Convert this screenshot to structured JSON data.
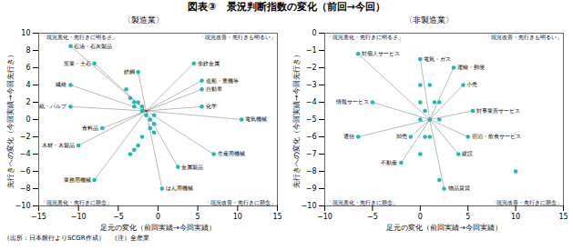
{
  "title": "図表③　景況判断指数の変化（前回→今回）",
  "footnote": "（出所：日本銀行よりSCGR作成）　（注）全産業",
  "chart_data": [
    {
      "type": "scatter",
      "subtitle": "〈製造業〉",
      "xlabel": "足元の変化（前回実績→今回実績）",
      "ylabel": "先行きへの変化（今回実績→今回先行き）",
      "xlim": [
        -15,
        15
      ],
      "ylim": [
        -10,
        10
      ],
      "xticks": [
        -15,
        -10,
        -5,
        0,
        5,
        10,
        15
      ],
      "yticks": [
        -10,
        -8,
        -6,
        -4,
        -2,
        0,
        2,
        4,
        6,
        8,
        10
      ],
      "color": "#1ABCB0",
      "x": [
        -11,
        -8,
        -11,
        -11,
        -7,
        -10,
        -8,
        -2.5,
        4.5,
        5.5,
        5.5,
        5.5,
        10.5,
        7.0,
        2.5,
        0.5,
        -4.0,
        -3.5,
        -3.0,
        -3.0,
        -2.5,
        -2.0,
        -2.0,
        -1.5,
        -1.0,
        -0.5,
        -0.5,
        -1.0,
        -2.0,
        -2.5,
        -3.0,
        -3.5,
        -0.5
      ],
      "y": [
        8.5,
        6.5,
        4.0,
        1.5,
        -1.0,
        -3.0,
        -7.0,
        5.5,
        6.5,
        4.5,
        3.5,
        1.5,
        0.0,
        -4.0,
        -5.5,
        -8.0,
        3.5,
        2.5,
        2.0,
        1.5,
        2.0,
        1.5,
        1.0,
        0.5,
        0.0,
        0.5,
        -0.5,
        -1.0,
        -2.0,
        -3.0,
        -3.5,
        -4.0,
        -1.5
      ],
      "labels": [
        "石油・石灰製品",
        "窯業・土石",
        "繊維",
        "紙・パルプ",
        "食料品",
        "木材・木製品",
        "業務用機械",
        "鉄鋼",
        "非鉄金属",
        "造船・重機等",
        "自動車",
        "化学",
        "電気機械",
        "生産用機械",
        "金属製品",
        "はん用機械",
        null,
        null,
        null,
        null,
        null,
        null,
        null,
        null,
        null,
        null,
        null,
        null,
        null,
        null,
        null,
        null,
        null
      ],
      "lines_from": {
        "x": -1.5,
        "y": 1.0
      },
      "annotations": [
        "「現況悪化・先行きに明るさ」",
        "「現況改善・先行きも明るい」",
        "「現況悪化・先行きに懸念」",
        "「現況改善・先行きに懸念」"
      ]
    },
    {
      "type": "scatter",
      "subtitle": "〈非製造業〉",
      "xlabel": "足元の変化（前回実績→今回実績）",
      "ylabel": "先行きへの変化（今回実績→今回先行き）",
      "xlim": [
        -10,
        15
      ],
      "ylim": [
        -10,
        0
      ],
      "xticks": [
        -10,
        -5,
        0,
        5,
        10,
        15
      ],
      "yticks": [
        -10,
        -9,
        -8,
        -7,
        -6,
        -5,
        -4,
        -3,
        -2,
        -1,
        0
      ],
      "color": "#1ABCB0",
      "x": [
        -6.5,
        -5.0,
        -6.5,
        -2.0,
        0.0,
        3.5,
        4.5,
        5.5,
        5.0,
        4.0,
        2.5,
        -1.0,
        0.0,
        0.0,
        0.5,
        0.0,
        1.0,
        1.5,
        1.0,
        1.0,
        2.0,
        2.0,
        0.5,
        0.0,
        2.0,
        10.0
      ],
      "y": [
        -1.2,
        -4.0,
        -6.0,
        -7.5,
        -1.5,
        -2.0,
        -3.0,
        -4.5,
        -6.0,
        -7.0,
        -9.0,
        -6.0,
        -3.0,
        -4.0,
        -4.5,
        -5.0,
        -3.0,
        -4.0,
        -5.0,
        -6.0,
        -4.0,
        -5.0,
        -6.0,
        -7.0,
        -8.5,
        -8.0
      ],
      "labels": [
        "対個人サービス",
        "情報サービス",
        "通信",
        "不動産",
        "電気・ガス",
        "運輸・郵便",
        "小売",
        "対事業所サービス",
        "宿泊・飲食サービス",
        "建設",
        "物品賃貸",
        "卸売",
        null,
        null,
        null,
        null,
        null,
        null,
        null,
        null,
        null,
        null,
        null,
        null,
        null,
        null
      ],
      "lines_from": {
        "x": 1.0,
        "y": -5.0
      },
      "annotations": [
        "「現況悪化・先行きに明るさ」",
        "「現況改善・先行きも明るい」",
        "「現況悪化・先行きに懸念」",
        "「現況改善・先行きに懸念」"
      ]
    }
  ]
}
